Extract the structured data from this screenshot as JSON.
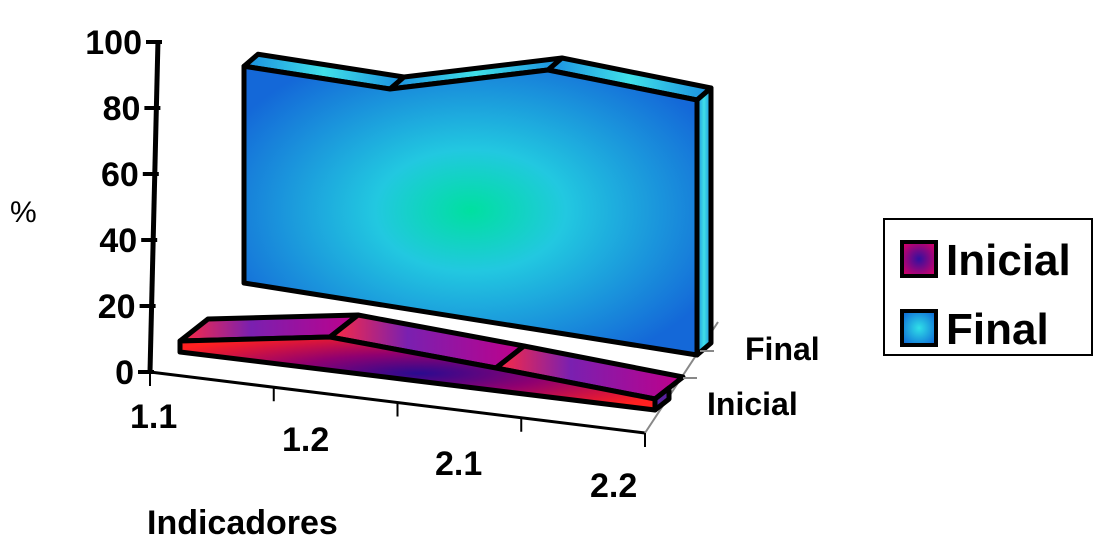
{
  "chart_data": {
    "type": "area",
    "categories": [
      "1.1",
      "1.2",
      "2.1",
      "2.2"
    ],
    "series": [
      {
        "name": "Inicial",
        "values": [
          5,
          15,
          10,
          5
        ],
        "color": "#cc0066"
      },
      {
        "name": "Final",
        "values": [
          85,
          80,
          100,
          100
        ],
        "color": "#1e90e0"
      }
    ],
    "depth_labels": [
      "Final",
      "Inicial"
    ],
    "ylabel": "%",
    "xlabel": "Indicadores",
    "ylim": [
      0,
      100
    ],
    "yticks": [
      0,
      20,
      40,
      60,
      80,
      100
    ],
    "legend_position": "right",
    "grid": false
  }
}
